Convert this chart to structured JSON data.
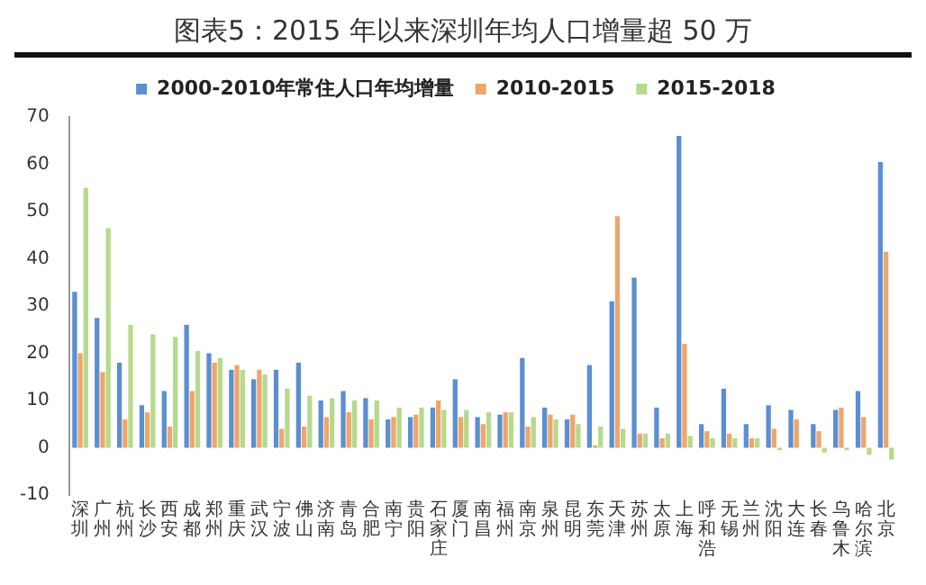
{
  "chart_data": {
    "type": "bar",
    "title": "图表5：2015 年以来深圳年均人口增量超 50 万",
    "categories": [
      "深圳",
      "广州",
      "杭州",
      "长沙",
      "西安",
      "成都",
      "郑州",
      "重庆",
      "武汉",
      "宁波",
      "佛山",
      "济南",
      "青岛",
      "合肥",
      "南宁",
      "贵阳",
      "石家庄",
      "厦门",
      "南昌",
      "福州",
      "南京",
      "泉州",
      "昆明",
      "东莞",
      "天津",
      "苏州",
      "太原",
      "上海",
      "呼和浩",
      "无锡",
      "兰州",
      "沈阳",
      "大连",
      "长春",
      "乌鲁木",
      "哈尔滨",
      "北京"
    ],
    "series": [
      {
        "name": "2000-2010年常住人口年均增量",
        "color": "#5b8fd0",
        "values": [
          33,
          27.5,
          18,
          9,
          12,
          26,
          20,
          16.5,
          14.5,
          16.5,
          18,
          10,
          12,
          10.5,
          6,
          6.5,
          8.5,
          14.5,
          6.5,
          7,
          19,
          8.5,
          6,
          17.5,
          31,
          36,
          8.5,
          66,
          5,
          12.5,
          5,
          9,
          8,
          5,
          8,
          12,
          60.5
        ]
      },
      {
        "name": "2010-2015",
        "color": "#eda66b",
        "values": [
          20,
          16,
          6,
          7.5,
          4.5,
          12,
          18,
          17.5,
          16.5,
          4,
          4.5,
          6.5,
          7.5,
          6,
          6.5,
          7,
          10,
          6.5,
          5,
          7.5,
          4.5,
          7,
          7,
          0.5,
          49,
          3,
          2,
          22,
          3.5,
          3,
          2,
          4,
          6,
          3.5,
          8.5,
          6.5,
          41.5
        ]
      },
      {
        "name": "2015-2018",
        "color": "#b5da8c",
        "values": [
          55,
          46.5,
          26,
          24,
          23.5,
          20.5,
          19,
          16.5,
          15.5,
          12.5,
          11,
          10.5,
          10,
          10,
          8.5,
          8.5,
          8,
          8,
          7.5,
          7.5,
          6.5,
          6,
          5,
          4.5,
          4,
          3,
          3,
          2.5,
          2,
          2,
          2,
          -0.5,
          0,
          -1,
          -0.5,
          -1.5,
          -2.5
        ]
      }
    ],
    "ylim": [
      -10,
      70
    ],
    "yticks": [
      -10,
      0,
      10,
      20,
      30,
      40,
      50,
      60,
      70
    ],
    "grid": false,
    "legend": "top"
  }
}
